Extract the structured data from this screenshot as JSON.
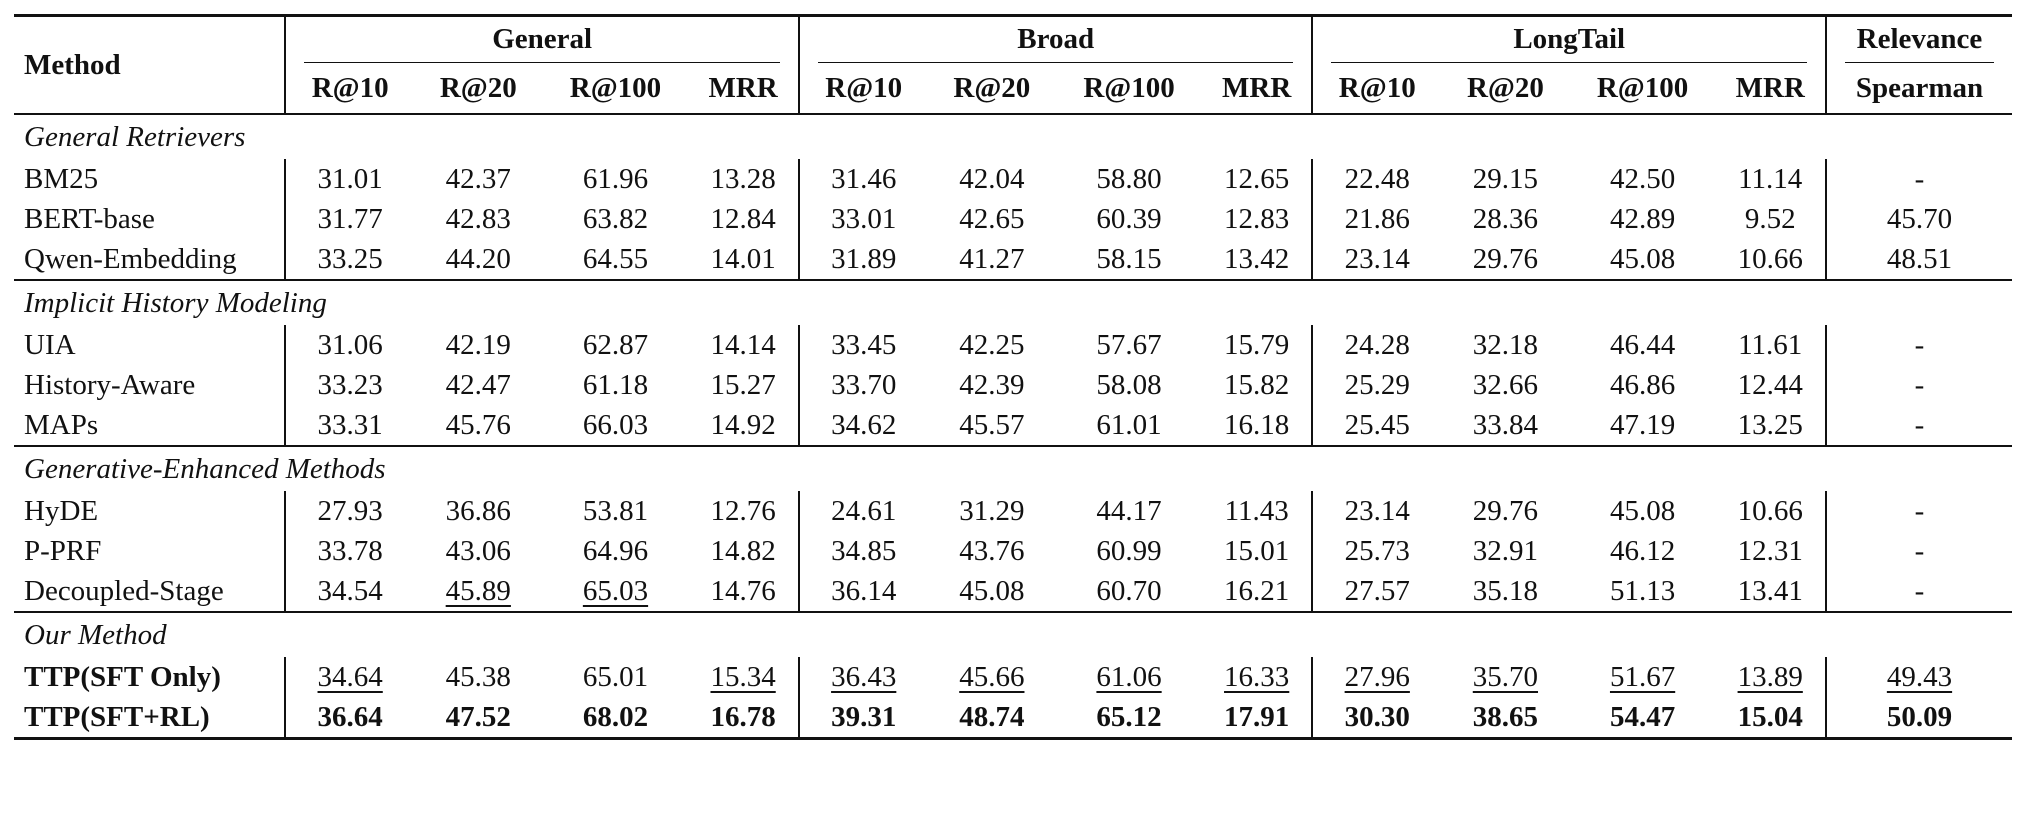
{
  "columns": {
    "method_header": "Method",
    "groups": [
      {
        "label": "General",
        "sub": [
          "R@10",
          "R@20",
          "R@100",
          "MRR"
        ]
      },
      {
        "label": "Broad",
        "sub": [
          "R@10",
          "R@20",
          "R@100",
          "MRR"
        ]
      },
      {
        "label": "LongTail",
        "sub": [
          "R@10",
          "R@20",
          "R@100",
          "MRR"
        ]
      },
      {
        "label": "Relevance",
        "sub": [
          "Spearman"
        ]
      }
    ]
  },
  "sections": [
    {
      "title": "General Retrievers",
      "rows": [
        {
          "name": "BM25",
          "bold": false,
          "values": [
            "31.01",
            "42.37",
            "61.96",
            "13.28",
            "31.46",
            "42.04",
            "58.80",
            "12.65",
            "22.48",
            "29.15",
            "42.50",
            "11.14",
            "-"
          ]
        },
        {
          "name": "BERT-base",
          "bold": false,
          "values": [
            "31.77",
            "42.83",
            "63.82",
            "12.84",
            "33.01",
            "42.65",
            "60.39",
            "12.83",
            "21.86",
            "28.36",
            "42.89",
            "9.52",
            "45.70"
          ]
        },
        {
          "name": "Qwen-Embedding",
          "bold": false,
          "values": [
            "33.25",
            "44.20",
            "64.55",
            "14.01",
            "31.89",
            "41.27",
            "58.15",
            "13.42",
            "23.14",
            "29.76",
            "45.08",
            "10.66",
            "48.51"
          ]
        }
      ]
    },
    {
      "title": "Implicit History Modeling",
      "rows": [
        {
          "name": "UIA",
          "bold": false,
          "values": [
            "31.06",
            "42.19",
            "62.87",
            "14.14",
            "33.45",
            "42.25",
            "57.67",
            "15.79",
            "24.28",
            "32.18",
            "46.44",
            "11.61",
            "-"
          ]
        },
        {
          "name": "History-Aware",
          "bold": false,
          "values": [
            "33.23",
            "42.47",
            "61.18",
            "15.27",
            "33.70",
            "42.39",
            "58.08",
            "15.82",
            "25.29",
            "32.66",
            "46.86",
            "12.44",
            "-"
          ]
        },
        {
          "name": "MAPs",
          "bold": false,
          "values": [
            "33.31",
            "45.76",
            "66.03",
            "14.92",
            "34.62",
            "45.57",
            "61.01",
            "16.18",
            "25.45",
            "33.84",
            "47.19",
            "13.25",
            "-"
          ]
        }
      ]
    },
    {
      "title": "Generative-Enhanced Methods",
      "rows": [
        {
          "name": "HyDE",
          "bold": false,
          "values": [
            "27.93",
            "36.86",
            "53.81",
            "12.76",
            "24.61",
            "31.29",
            "44.17",
            "11.43",
            "23.14",
            "29.76",
            "45.08",
            "10.66",
            "-"
          ]
        },
        {
          "name": "P-PRF",
          "bold": false,
          "values": [
            "33.78",
            "43.06",
            "64.96",
            "14.82",
            "34.85",
            "43.76",
            "60.99",
            "15.01",
            "25.73",
            "32.91",
            "46.12",
            "12.31",
            "-"
          ]
        },
        {
          "name": "Decoupled-Stage",
          "bold": false,
          "values": [
            "34.54",
            "45.89",
            "65.03",
            "14.76",
            "36.14",
            "45.08",
            "60.70",
            "16.21",
            "27.57",
            "35.18",
            "51.13",
            "13.41",
            "-"
          ],
          "underline": [
            1,
            2
          ]
        }
      ]
    },
    {
      "title": "Our Method",
      "rows": [
        {
          "name": "TTP(SFT Only)",
          "bold": true,
          "values": [
            "34.64",
            "45.38",
            "65.01",
            "15.34",
            "36.43",
            "45.66",
            "61.06",
            "16.33",
            "27.96",
            "35.70",
            "51.67",
            "13.89",
            "49.43"
          ],
          "underline": [
            0,
            3,
            4,
            5,
            6,
            7,
            8,
            9,
            10,
            11,
            12
          ]
        },
        {
          "name": "TTP(SFT+RL)",
          "bold": true,
          "bold_values": true,
          "values": [
            "36.64",
            "47.52",
            "68.02",
            "16.78",
            "39.31",
            "48.74",
            "65.12",
            "17.91",
            "30.30",
            "38.65",
            "54.47",
            "15.04",
            "50.09"
          ]
        }
      ]
    }
  ]
}
